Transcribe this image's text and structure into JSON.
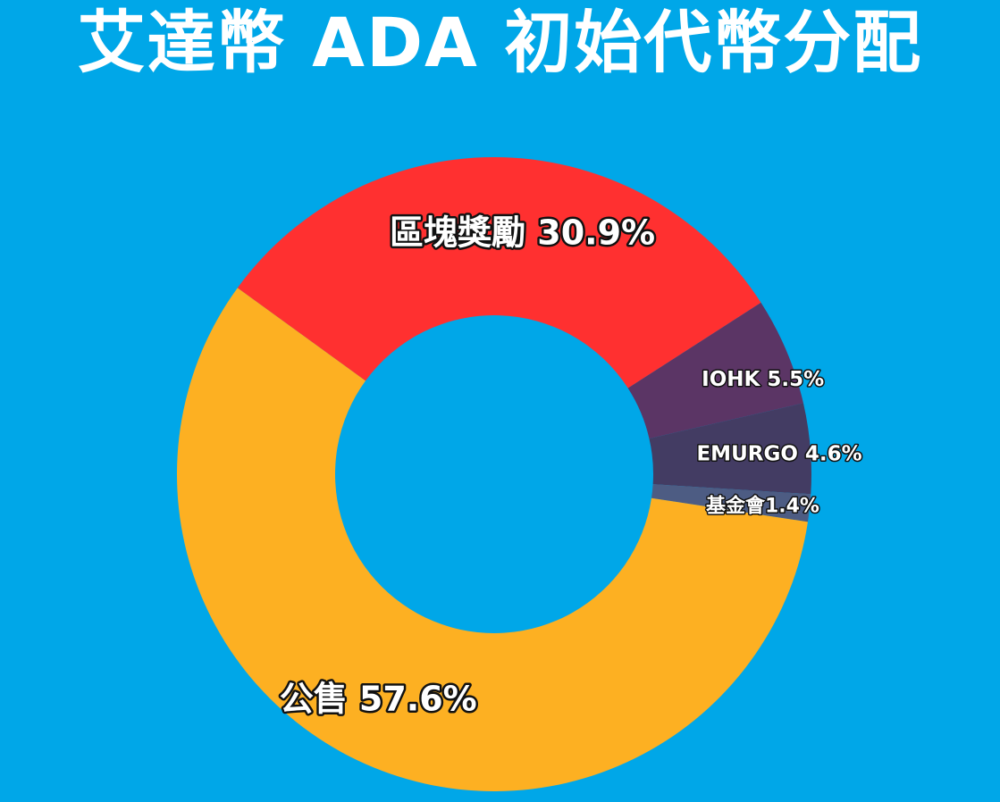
{
  "chart_data": {
    "type": "pie",
    "title": "艾達幣 ADA 初始代幣分配",
    "donut": true,
    "slices": [
      {
        "label": "區塊獎勵",
        "value": 30.9,
        "display": "區塊獎勵 30.9%",
        "color": "#ff3030"
      },
      {
        "label": "IOHK",
        "value": 5.5,
        "display": "IOHK 5.5%",
        "color": "#5b3565"
      },
      {
        "label": "EMURGO",
        "value": 4.6,
        "display": "EMURGO 4.6%",
        "color": "#433c63"
      },
      {
        "label": "基金會",
        "value": 1.4,
        "display": "基金會1.4%",
        "color": "#4d5c83"
      },
      {
        "label": "公售",
        "value": 57.6,
        "display": "公售 57.6%",
        "color": "#fdb022"
      }
    ]
  }
}
